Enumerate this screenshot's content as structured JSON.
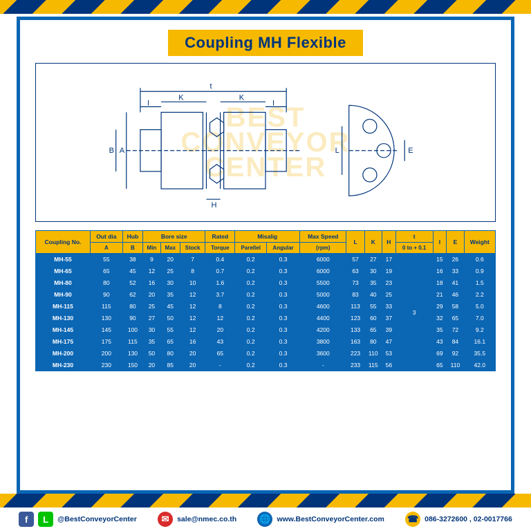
{
  "title": "Coupling MH Flexible",
  "watermark": {
    "line1": "BEST",
    "line2": "CONVEYOR",
    "line3": "CENTER"
  },
  "footer": {
    "social": "@BestConveyorCenter",
    "email": "sale@nmec.co.th",
    "website": "www.BestConveyorCenter.com",
    "phone": "086-3272600 , 02-0017766"
  },
  "diagram": {
    "stroke": "#00347a",
    "labels": [
      "t",
      "K",
      "K",
      "I",
      "I",
      "A",
      "B",
      "L",
      "E",
      "H"
    ]
  },
  "table": {
    "header_row1": [
      "Coupling No.",
      "Out dia",
      "Hub",
      "Bore size",
      "Rated",
      "Misalig",
      "Max Speed",
      "L",
      "K",
      "H",
      "t",
      "I",
      "E",
      "Weight"
    ],
    "header_row2": [
      "",
      "A",
      "B",
      "Min",
      "Max",
      "Stock",
      "Torque",
      "Parellel",
      "Angular",
      "(rpm)",
      "",
      "",
      "",
      "0 to + 0.1",
      "",
      "",
      ""
    ],
    "header_groups": {
      "coupling_rowspan": 2,
      "bore_colspan": 3,
      "misalig_colspan": 2
    },
    "t_value": "3",
    "rows": [
      {
        "no": "MH-55",
        "A": "55",
        "B": "38",
        "min": "9",
        "max": "20",
        "stock": "7",
        "torque": "0.4",
        "par": "0.2",
        "ang": "0.3",
        "rpm": "6000",
        "L": "57",
        "K": "27",
        "H": "17",
        "I": "15",
        "E": "26",
        "W": "0.6"
      },
      {
        "no": "MH-65",
        "A": "65",
        "B": "45",
        "min": "12",
        "max": "25",
        "stock": "8",
        "torque": "0.7",
        "par": "0.2",
        "ang": "0.3",
        "rpm": "6000",
        "L": "63",
        "K": "30",
        "H": "19",
        "I": "16",
        "E": "33",
        "W": "0.9"
      },
      {
        "no": "MH-80",
        "A": "80",
        "B": "52",
        "min": "16",
        "max": "30",
        "stock": "10",
        "torque": "1.6",
        "par": "0.2",
        "ang": "0.3",
        "rpm": "5500",
        "L": "73",
        "K": "35",
        "H": "23",
        "I": "18",
        "E": "41",
        "W": "1.5"
      },
      {
        "no": "MH-90",
        "A": "90",
        "B": "62",
        "min": "20",
        "max": "35",
        "stock": "12",
        "torque": "3.7",
        "par": "0.2",
        "ang": "0.3",
        "rpm": "5000",
        "L": "83",
        "K": "40",
        "H": "25",
        "I": "21",
        "E": "46",
        "W": "2.2"
      },
      {
        "no": "MH-115",
        "A": "115",
        "B": "80",
        "min": "25",
        "max": "45",
        "stock": "12",
        "torque": "8",
        "par": "0.2",
        "ang": "0.3",
        "rpm": "4600",
        "L": "113",
        "K": "55",
        "H": "33",
        "I": "29",
        "E": "58",
        "W": "5.0"
      },
      {
        "no": "MH-130",
        "A": "130",
        "B": "90",
        "min": "27",
        "max": "50",
        "stock": "12",
        "torque": "12",
        "par": "0.2",
        "ang": "0.3",
        "rpm": "4400",
        "L": "123",
        "K": "60",
        "H": "37",
        "I": "32",
        "E": "65",
        "W": "7.0"
      },
      {
        "no": "MH-145",
        "A": "145",
        "B": "100",
        "min": "30",
        "max": "55",
        "stock": "12",
        "torque": "20",
        "par": "0.2",
        "ang": "0.3",
        "rpm": "4200",
        "L": "133",
        "K": "65",
        "H": "39",
        "I": "35",
        "E": "72",
        "W": "9.2"
      },
      {
        "no": "MH-175",
        "A": "175",
        "B": "115",
        "min": "35",
        "max": "65",
        "stock": "16",
        "torque": "43",
        "par": "0.2",
        "ang": "0.3",
        "rpm": "3800",
        "L": "163",
        "K": "80",
        "H": "47",
        "I": "43",
        "E": "84",
        "W": "16.1"
      },
      {
        "no": "MH-200",
        "A": "200",
        "B": "130",
        "min": "50",
        "max": "80",
        "stock": "20",
        "torque": "65",
        "par": "0.2",
        "ang": "0.3",
        "rpm": "3600",
        "L": "223",
        "K": "110",
        "H": "53",
        "I": "69",
        "E": "92",
        "W": "35.5"
      },
      {
        "no": "MH-230",
        "A": "230",
        "B": "150",
        "min": "20",
        "max": "85",
        "stock": "20",
        "torque": "-",
        "par": "0.2",
        "ang": "0.3",
        "rpm": "-",
        "L": "233",
        "K": "115",
        "H": "56",
        "I": "65",
        "E": "110",
        "W": "42.0"
      }
    ]
  },
  "colors": {
    "primary": "#0b66b4",
    "accent": "#f6b900",
    "dark": "#00347a"
  }
}
